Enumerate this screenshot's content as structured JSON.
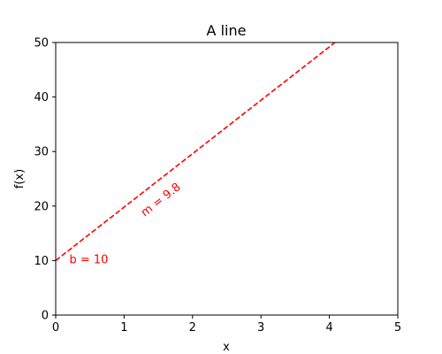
{
  "chart_data": {
    "type": "line",
    "title": "A line",
    "xlabel": "x",
    "ylabel": "f(x)",
    "xlim": [
      0,
      5
    ],
    "ylim": [
      0,
      50
    ],
    "xticks": [
      0,
      1,
      2,
      3,
      4,
      5
    ],
    "yticks": [
      0,
      10,
      20,
      30,
      40,
      50
    ],
    "grid": false,
    "series": [
      {
        "x": [
          0,
          5
        ],
        "y": [
          10,
          59
        ],
        "color": "#ff0000",
        "linestyle": "dashed"
      }
    ],
    "annotations": [
      {
        "text": "b = 10",
        "x": 0.2,
        "y": 9.5,
        "rotation": 0,
        "color": "#ff0000"
      },
      {
        "text": "m = 9.8",
        "x": 1.3,
        "y": 18,
        "rotation": -38,
        "color": "#ff0000"
      }
    ]
  }
}
